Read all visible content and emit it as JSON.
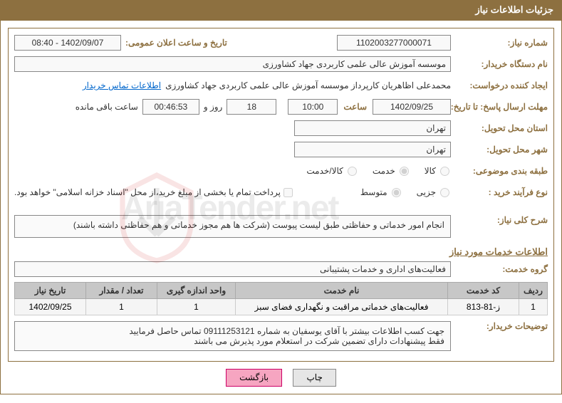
{
  "header": {
    "title": "جزئیات اطلاعات نیاز"
  },
  "fields": {
    "need_number_label": "شماره نیاز:",
    "need_number": "1102003277000071",
    "announce_dt_label": "تاریخ و ساعت اعلان عمومی:",
    "announce_dt": "1402/09/07 - 08:40",
    "buyer_org_label": "نام دستگاه خریدار:",
    "buyer_org": "موسسه آموزش عالی علمی کاربردی جهاد کشاورزی",
    "requester_label": "ایجاد کننده درخواست:",
    "requester": "محمدعلی اظاهریان کارپرداز موسسه آموزش عالی علمی کاربردی جهاد کشاورزی",
    "contact_link": "اطلاعات تماس خریدار",
    "deadline_label": "مهلت ارسال پاسخ: تا تاریخ:",
    "deadline_date": "1402/09/25",
    "deadline_time_label": "ساعت",
    "deadline_time": "10:00",
    "days_remain": "18",
    "days_remain_label": "روز و",
    "time_remain": "00:46:53",
    "time_remain_label": "ساعت باقی مانده",
    "province_label": "استان محل تحویل:",
    "province": "تهران",
    "city_label": "شهر محل تحویل:",
    "city": "تهران",
    "subject_class_label": "طبقه بندی موضوعی:",
    "radio_goods": "کالا",
    "radio_service": "خدمت",
    "radio_goods_service": "کالا/خدمت",
    "process_type_label": "نوع فرآیند خرید :",
    "radio_minor": "جزیی",
    "radio_medium": "متوسط",
    "payment_note": "پرداخت تمام یا بخشی از مبلغ خرید،از محل \"اسناد خزانه اسلامی\" خواهد بود.",
    "gen_desc_label": "شرح کلی نیاز:",
    "gen_desc": "انجام امور خدماتی و حفاظتی طبق لیست پیوست (شرکت ها هم مجوز خدماتی و هم حفاظتی داشته باشند)",
    "services_header": "اطلاعات خدمات مورد نیاز",
    "service_group_label": "گروه خدمت:",
    "service_group": "فعالیت‌های اداری و خدمات پشتیبانی",
    "buyer_notes_label": "توضیحات خریدار:",
    "buyer_notes_l1": "جهت کسب اطلاعات بیشتر با آقای یوسفیان به شماره 09111253121 تماس حاصل فرمایید",
    "buyer_notes_l2": "فقط پیشنهادات دارای تضمین شرکت در استعلام مورد پذیرش می باشند"
  },
  "table": {
    "columns": [
      "ردیف",
      "کد خدمت",
      "نام خدمت",
      "واحد اندازه گیری",
      "تعداد / مقدار",
      "تاریخ نیاز"
    ],
    "rows": [
      [
        "1",
        "ز-81-813",
        "فعالیت‌های خدماتی مراقبت و نگهداری فضای سبز",
        "1",
        "1",
        "1402/09/25"
      ]
    ]
  },
  "buttons": {
    "print": "چاپ",
    "back": "بازگشت"
  },
  "watermark": "AriaTender.net",
  "colors": {
    "brand": "#8d7040",
    "link": "#0066cc",
    "th_bg": "#c7c7c7",
    "btn_pink": "#f6a5c1"
  }
}
